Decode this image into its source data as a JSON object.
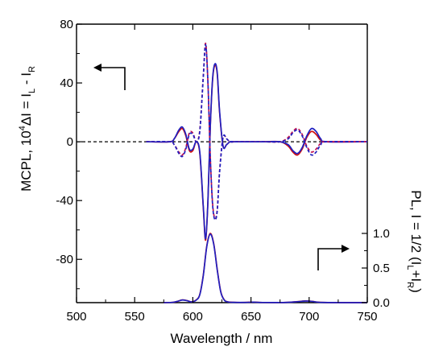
{
  "chart_data": {
    "type": "line",
    "x_axis": {
      "label": "Wavelength / nm",
      "range": [
        500,
        750
      ],
      "ticks": [
        500,
        550,
        600,
        650,
        700,
        750
      ]
    },
    "left_axis": {
      "label_main": "MCPL, 10",
      "label_sup": "4",
      "label_tail": "ΔI = I",
      "label_sub1": "L",
      "label_mid": " - I",
      "label_sub2": "R",
      "range": [
        -110,
        80
      ],
      "ticks": [
        80,
        40,
        0,
        -40,
        -80
      ],
      "tick_labels": [
        "80",
        "40",
        "0",
        "-40",
        "-80"
      ]
    },
    "right_axis": {
      "label_main": "PL, I = 1/2 (I",
      "label_sub1": "L",
      "label_mid": "+I",
      "label_sub2": "R",
      "label_end": ")",
      "range": [
        0,
        1.0
      ],
      "ticks": [
        0.0,
        0.5,
        1.0
      ],
      "tick_labels": [
        "0.0",
        "0.5",
        "1.0"
      ]
    },
    "series": [
      {
        "group": "MCPL",
        "color": "#d01010",
        "dash": "solid",
        "x": [
          560,
          580,
          584,
          588,
          591,
          594,
          597,
          600,
          603,
          606,
          609,
          611,
          613,
          615,
          617,
          619,
          621,
          623,
          626,
          629,
          632,
          636,
          640,
          660,
          675,
          682,
          686,
          690,
          694,
          698,
          702,
          706,
          710,
          715,
          750
        ],
        "y": [
          0,
          0,
          2,
          7,
          9,
          4,
          -6,
          -6,
          0,
          -8,
          -45,
          -67,
          -40,
          10,
          42,
          52,
          46,
          20,
          -3,
          -2,
          0,
          0,
          0,
          0,
          0,
          -3,
          -7,
          -9,
          -5,
          3,
          7,
          5,
          1,
          0,
          0
        ]
      },
      {
        "group": "MCPL",
        "color": "#2020c0",
        "dash": "solid",
        "x": [
          560,
          580,
          584,
          588,
          591,
          594,
          597,
          600,
          603,
          606,
          609,
          611,
          613,
          615,
          617,
          619,
          621,
          623,
          626,
          629,
          632,
          636,
          640,
          660,
          675,
          682,
          686,
          690,
          694,
          698,
          702,
          706,
          710,
          715,
          750
        ],
        "y": [
          0,
          0,
          2,
          8,
          10,
          5,
          -5,
          -5,
          0,
          -7,
          -44,
          -66,
          -40,
          10,
          43,
          53,
          47,
          21,
          -3,
          -2,
          0,
          0,
          0,
          0,
          0,
          -2,
          -6,
          -8,
          -4,
          4,
          9,
          7,
          2,
          0,
          0
        ]
      },
      {
        "group": "MCPL",
        "color": "#c01050",
        "dash": "dashed",
        "x": [
          560,
          580,
          584,
          588,
          591,
          594,
          597,
          600,
          603,
          606,
          609,
          611,
          613,
          615,
          617,
          619,
          621,
          623,
          626,
          629,
          632,
          636,
          640,
          660,
          675,
          682,
          686,
          690,
          694,
          698,
          702,
          706,
          710,
          715,
          750
        ],
        "y": [
          0,
          0,
          -2,
          -7,
          -9,
          -4,
          6,
          6,
          0,
          8,
          45,
          67,
          40,
          -10,
          -42,
          -52,
          -46,
          -20,
          3,
          2,
          0,
          0,
          0,
          0,
          0,
          3,
          7,
          9,
          5,
          -3,
          -7,
          -5,
          -1,
          0,
          0
        ]
      },
      {
        "group": "MCPL",
        "color": "#2020c0",
        "dash": "dashed",
        "x": [
          560,
          580,
          584,
          588,
          591,
          594,
          597,
          600,
          603,
          606,
          609,
          611,
          613,
          615,
          617,
          619,
          621,
          623,
          626,
          629,
          632,
          636,
          640,
          660,
          675,
          682,
          686,
          690,
          694,
          698,
          702,
          706,
          710,
          715,
          750
        ],
        "y": [
          0,
          0,
          -2,
          -8,
          -10,
          -5,
          5,
          5,
          0,
          7,
          44,
          66,
          40,
          -10,
          -43,
          -53,
          -47,
          -21,
          3,
          2,
          0,
          0,
          0,
          0,
          0,
          2,
          6,
          8,
          4,
          -4,
          -9,
          -7,
          -2,
          0,
          0
        ]
      },
      {
        "group": "PL",
        "color": "#d01010",
        "dash": "solid",
        "x": [
          575,
          583,
          587,
          591,
          595,
          599,
          603,
          606,
          609,
          612,
          615,
          618,
          621,
          624,
          627,
          630,
          635,
          645,
          652,
          660,
          680,
          690,
          697,
          703,
          712,
          750
        ],
        "y": [
          0,
          0.005,
          0.02,
          0.04,
          0.03,
          0.012,
          0.04,
          0.12,
          0.4,
          0.82,
          1.0,
          0.85,
          0.48,
          0.16,
          0.04,
          0.012,
          0.004,
          0.003,
          0.008,
          0.002,
          0.003,
          0.015,
          0.025,
          0.018,
          0.003,
          0
        ]
      },
      {
        "group": "PL",
        "color": "#2020c0",
        "dash": "solid",
        "x": [
          575,
          583,
          587,
          591,
          595,
          599,
          603,
          606,
          609,
          612,
          615,
          618,
          621,
          624,
          627,
          630,
          635,
          645,
          652,
          660,
          680,
          690,
          697,
          703,
          712,
          750
        ],
        "y": [
          0,
          0.005,
          0.02,
          0.038,
          0.028,
          0.011,
          0.038,
          0.115,
          0.39,
          0.81,
          0.99,
          0.84,
          0.47,
          0.155,
          0.038,
          0.011,
          0.004,
          0.003,
          0.007,
          0.002,
          0.003,
          0.014,
          0.023,
          0.017,
          0.003,
          0
        ]
      }
    ],
    "zero_line": {
      "value": 0,
      "style": "dashed",
      "color": "#000000"
    },
    "annotations": [
      {
        "type": "arrow",
        "direction": "left",
        "axis": "left",
        "description": "points to left axis (MCPL)"
      },
      {
        "type": "arrow",
        "direction": "right",
        "axis": "right",
        "description": "points to right axis (PL)"
      }
    ],
    "grid": false,
    "legend": "none"
  }
}
